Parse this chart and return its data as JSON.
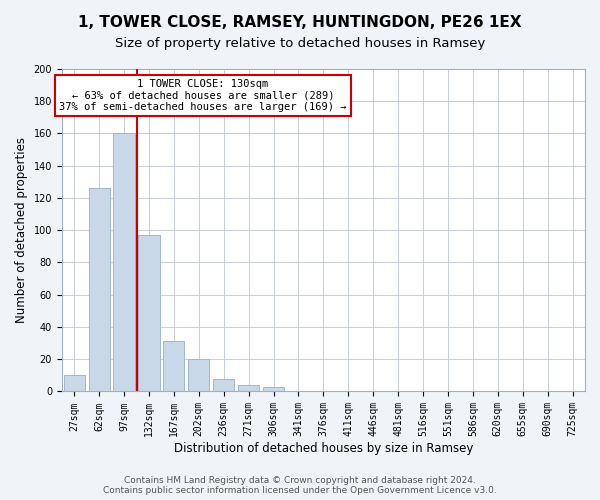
{
  "title": "1, TOWER CLOSE, RAMSEY, HUNTINGDON, PE26 1EX",
  "subtitle": "Size of property relative to detached houses in Ramsey",
  "xlabel": "Distribution of detached houses by size in Ramsey",
  "ylabel": "Number of detached properties",
  "bar_labels": [
    "27sqm",
    "62sqm",
    "97sqm",
    "132sqm",
    "167sqm",
    "202sqm",
    "236sqm",
    "271sqm",
    "306sqm",
    "341sqm",
    "376sqm",
    "411sqm",
    "446sqm",
    "481sqm",
    "516sqm",
    "551sqm",
    "586sqm",
    "620sqm",
    "655sqm",
    "690sqm",
    "725sqm"
  ],
  "bar_values": [
    10,
    126,
    160,
    97,
    31,
    20,
    8,
    4,
    3,
    0,
    0,
    0,
    0,
    0,
    0,
    0,
    0,
    0,
    0,
    0,
    0
  ],
  "bar_color": "#c8d8e8",
  "bar_edge_color": "#a0b8d0",
  "highlight_line_color": "#cc0000",
  "annotation_line1": "1 TOWER CLOSE: 130sqm",
  "annotation_line2": "← 63% of detached houses are smaller (289)",
  "annotation_line3": "37% of semi-detached houses are larger (169) →",
  "annotation_box_edge_color": "#cc0000",
  "ylim": [
    0,
    200
  ],
  "yticks": [
    0,
    20,
    40,
    60,
    80,
    100,
    120,
    140,
    160,
    180,
    200
  ],
  "footer_text": "Contains HM Land Registry data © Crown copyright and database right 2024.\nContains public sector information licensed under the Open Government Licence v3.0.",
  "bg_color": "#f0f4f8",
  "plot_bg_color": "#ffffff",
  "title_fontsize": 11,
  "subtitle_fontsize": 9.5,
  "tick_fontsize": 7,
  "label_fontsize": 8.5,
  "footer_fontsize": 6.5,
  "annotation_fontsize": 7.5
}
